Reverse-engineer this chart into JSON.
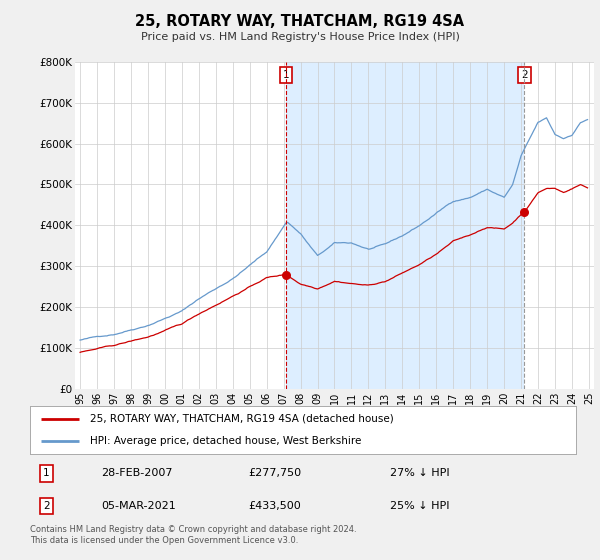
{
  "title": "25, ROTARY WAY, THATCHAM, RG19 4SA",
  "subtitle": "Price paid vs. HM Land Registry's House Price Index (HPI)",
  "legend_line1": "25, ROTARY WAY, THATCHAM, RG19 4SA (detached house)",
  "legend_line2": "HPI: Average price, detached house, West Berkshire",
  "transaction1_date": "28-FEB-2007",
  "transaction1_price": "£277,750",
  "transaction1_hpi": "27% ↓ HPI",
  "transaction2_date": "05-MAR-2021",
  "transaction2_price": "£433,500",
  "transaction2_hpi": "25% ↓ HPI",
  "footnote": "Contains HM Land Registry data © Crown copyright and database right 2024.\nThis data is licensed under the Open Government Licence v3.0.",
  "red_color": "#cc0000",
  "blue_color": "#6699cc",
  "vline1_color": "#cc0000",
  "vline2_color": "#999999",
  "shade_color": "#ddeeff",
  "ylim_min": 0,
  "ylim_max": 800000,
  "yticks": [
    0,
    100000,
    200000,
    300000,
    400000,
    500000,
    600000,
    700000,
    800000
  ],
  "ytick_labels": [
    "£0",
    "£100K",
    "£200K",
    "£300K",
    "£400K",
    "£500K",
    "£600K",
    "£700K",
    "£800K"
  ],
  "vline1_x": 2007.15,
  "vline2_x": 2021.2,
  "red_point1_x": 2007.15,
  "red_point1_y": 277750,
  "red_point2_x": 2021.2,
  "red_point2_y": 433500,
  "xmin": 1994.7,
  "xmax": 2025.3,
  "xticks": [
    1995,
    1996,
    1997,
    1998,
    1999,
    2000,
    2001,
    2002,
    2003,
    2004,
    2005,
    2006,
    2007,
    2008,
    2009,
    2010,
    2011,
    2012,
    2013,
    2014,
    2015,
    2016,
    2017,
    2018,
    2019,
    2020,
    2021,
    2022,
    2023,
    2024,
    2025
  ],
  "bg_color": "#f0f0f0",
  "plot_bg": "#ffffff",
  "grid_color": "#cccccc"
}
